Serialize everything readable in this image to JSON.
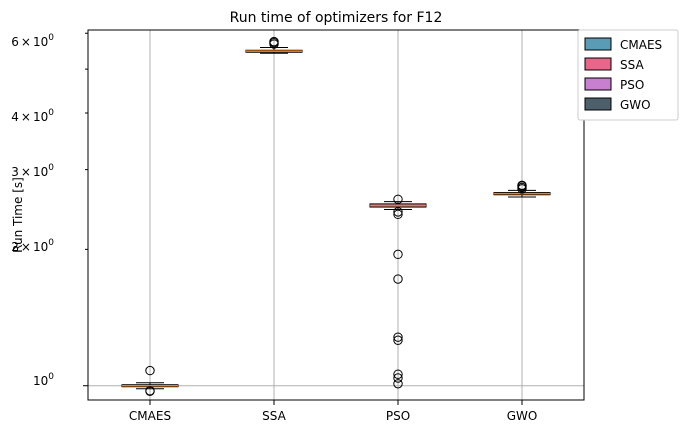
{
  "chart_data": {
    "type": "box",
    "title": "Run time of optimizers for F12",
    "xlabel": "",
    "ylabel": "Run Time [s]",
    "yscale": "log",
    "ylim": [
      0.93,
      6.1
    ],
    "grid": true,
    "categories": [
      "CMAES",
      "SSA",
      "PSO",
      "GWO"
    ],
    "y_ticks": [
      {
        "value": 1,
        "label": "10^0 mantissa 1"
      },
      {
        "value": 2,
        "label": "2"
      },
      {
        "value": 3,
        "label": "3"
      },
      {
        "value": 4,
        "label": "4"
      },
      {
        "value": 6,
        "label": "6"
      }
    ],
    "series": [
      {
        "name": "CMAES",
        "color": "#5a9bb5",
        "q1": 0.995,
        "median": 1.0,
        "q3": 1.005,
        "whisker_low": 0.985,
        "whisker_high": 1.015,
        "outliers": [
          1.08,
          0.975,
          0.972
        ]
      },
      {
        "name": "SSA",
        "color": "#e8668a",
        "q1": 5.45,
        "median": 5.48,
        "q3": 5.5,
        "whisker_low": 5.42,
        "whisker_high": 5.58,
        "outliers": [
          5.68,
          5.72,
          5.75
        ]
      },
      {
        "name": "PSO",
        "color": "#c97fd0",
        "q1": 2.48,
        "median": 2.5,
        "q3": 2.52,
        "whisker_low": 2.45,
        "whisker_high": 2.55,
        "outliers": [
          2.58,
          2.42,
          2.39,
          1.95,
          1.72,
          1.28,
          1.26,
          1.06,
          1.04,
          1.01
        ]
      },
      {
        "name": "GWO",
        "color": "#4c5f6b",
        "q1": 2.64,
        "median": 2.655,
        "q3": 2.67,
        "whisker_low": 2.61,
        "whisker_high": 2.7,
        "outliers": [
          2.72,
          2.74,
          2.76,
          2.77
        ]
      }
    ],
    "legend": {
      "position": "outside-top-right",
      "entries": [
        "CMAES",
        "SSA",
        "PSO",
        "GWO"
      ]
    }
  },
  "labels": {
    "title": "Run time of optimizers for F12",
    "ylabel": "Run Time [s]",
    "ytick_0_base": "10",
    "ytick_0_exp": "0",
    "ytick_1": "1",
    "ytick_2_mant": "2",
    "ytick_3_mant": "3",
    "ytick_4_mant": "4",
    "ytick_6_mant": "6",
    "times": "×",
    "base": "10",
    "exp": "0",
    "x_CMAES": "CMAES",
    "x_SSA": "SSA",
    "x_PSO": "PSO",
    "x_GWO": "GWO",
    "leg_CMAES": "CMAES",
    "leg_SSA": "SSA",
    "leg_PSO": "PSO",
    "leg_GWO": "GWO"
  }
}
